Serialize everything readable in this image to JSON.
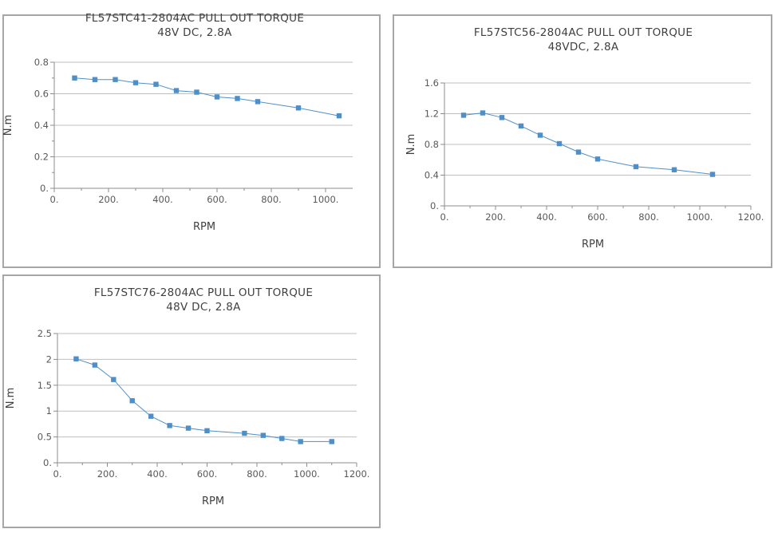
{
  "chart_data": [
    {
      "type": "line",
      "title": "FL57STC41-2804AC  PULL  OUT  TORQUE",
      "subtitle": "48V DC, 2.8A",
      "xlabel": "RPM",
      "ylabel": "N.m",
      "xlim": [
        0,
        1100
      ],
      "ylim": [
        0,
        0.8
      ],
      "xticks": [
        0,
        200,
        400,
        600,
        800,
        1000
      ],
      "xtick_labels": [
        "0.",
        "200.",
        "400.",
        "600.",
        "800.",
        "1000."
      ],
      "yticks": [
        0,
        0.2,
        0.4,
        0.6,
        0.8
      ],
      "ytick_labels": [
        "0.",
        "0.2",
        "0.4",
        "0.6",
        "0.8"
      ],
      "x": [
        75,
        150,
        225,
        300,
        375,
        450,
        525,
        600,
        675,
        750,
        900,
        1050
      ],
      "values": [
        0.7,
        0.69,
        0.69,
        0.67,
        0.66,
        0.62,
        0.61,
        0.58,
        0.57,
        0.55,
        0.51,
        0.46
      ],
      "color": "#4f8fc8"
    },
    {
      "type": "line",
      "title": "FL57STC56-2804AC  PULL  OUT   TORQUE",
      "subtitle": "48VDC, 2.8A",
      "xlabel": "RPM",
      "ylabel": "N.m",
      "xlim": [
        0,
        1200
      ],
      "ylim": [
        0,
        1.6
      ],
      "xticks": [
        0,
        200,
        400,
        600,
        800,
        1000,
        1200
      ],
      "xtick_labels": [
        "0.",
        "200.",
        "400.",
        "600.",
        "800.",
        "1000.",
        "1200."
      ],
      "yticks": [
        0,
        0.4,
        0.8,
        1.2,
        1.6
      ],
      "ytick_labels": [
        "0.",
        "0.4",
        "0.8",
        "1.2",
        "1.6"
      ],
      "x": [
        75,
        150,
        225,
        300,
        375,
        450,
        525,
        600,
        750,
        900,
        1050
      ],
      "values": [
        1.18,
        1.21,
        1.15,
        1.04,
        0.92,
        0.81,
        0.7,
        0.61,
        0.51,
        0.47,
        0.41
      ],
      "color": "#4f8fc8"
    },
    {
      "type": "line",
      "title": "FL57STC76-2804AC  PULL   OUT   TORQUE",
      "subtitle": "48V DC, 2.8A",
      "xlabel": "RPM",
      "ylabel": "N.m",
      "xlim": [
        0,
        1200
      ],
      "ylim": [
        0,
        2.5
      ],
      "xticks": [
        0,
        200,
        400,
        600,
        800,
        1000,
        1200
      ],
      "xtick_labels": [
        "0.",
        "200.",
        "400.",
        "600.",
        "800.",
        "1000.",
        "1200."
      ],
      "yticks": [
        0,
        0.5,
        1,
        1.5,
        2,
        2.5
      ],
      "ytick_labels": [
        "0.",
        "0.5",
        "1",
        "1.5",
        "2",
        "2.5"
      ],
      "x": [
        75,
        150,
        225,
        300,
        375,
        450,
        525,
        600,
        750,
        825,
        900,
        975,
        1100
      ],
      "values": [
        2.01,
        1.89,
        1.61,
        1.2,
        0.9,
        0.72,
        0.67,
        0.62,
        0.57,
        0.53,
        0.47,
        0.41,
        0.41
      ],
      "color": "#4f8fc8"
    }
  ]
}
